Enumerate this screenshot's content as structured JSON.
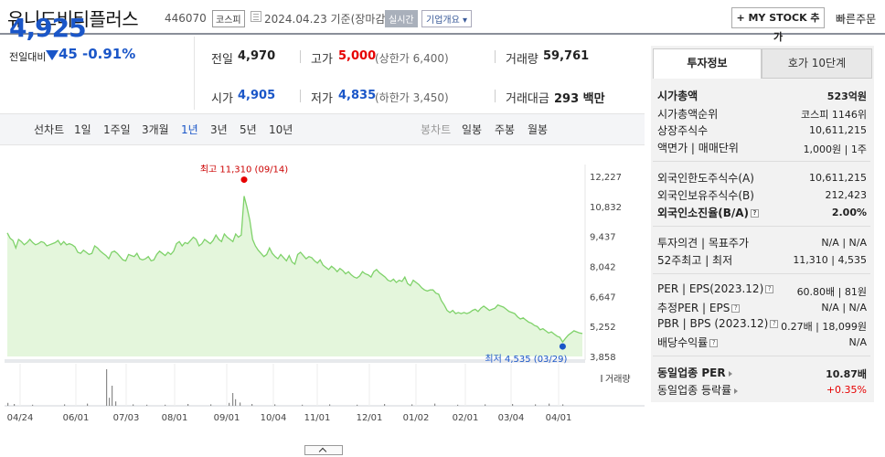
{
  "header": {
    "stock_name": "유니드비티플러스",
    "stock_code": "446070",
    "market": "코스피",
    "date_text": "2024.04.23 기준(장마감)",
    "realtime": "실시간",
    "corp_overview": "기업개요 ▾",
    "mystock_label": "+ MY STOCK 추가",
    "fast_order": "빠른주문"
  },
  "summary": {
    "price": "4,925",
    "change_label": "전일대비",
    "change_amount": "45",
    "change_rate": "-0.91%",
    "prev_close_label": "전일",
    "prev_close": "4,970",
    "high_label": "고가",
    "high": "5,000",
    "upper_limit": "(상한가 6,400)",
    "volume_label": "거래량",
    "volume": "59,761",
    "open_label": "시가",
    "open": "4,905",
    "low_label": "저가",
    "low": "4,835",
    "lower_limit": "(하한가 3,450)",
    "amount_label": "거래대금",
    "amount": "293 백만"
  },
  "tabs": {
    "line_chart": "선차트",
    "periods": [
      "1일",
      "1주일",
      "3개월",
      "1년",
      "3년",
      "5년",
      "10년"
    ],
    "selected": "1년",
    "candle_chart": "봉차트",
    "candle_periods": [
      "일봉",
      "주봉",
      "월봉"
    ]
  },
  "chart_data": {
    "type": "area",
    "y_ticks": [
      "12,227",
      "10,832",
      "9,437",
      "8,042",
      "6,647",
      "5,252",
      "3,858"
    ],
    "x_ticks": [
      "04/24",
      "06/01",
      "07/03",
      "08/01",
      "09/01",
      "10/04",
      "11/01",
      "12/01",
      "01/02",
      "02/01",
      "03/04",
      "04/01"
    ],
    "ylim": [
      3858,
      12227
    ],
    "high_annotation": "최고 11,310 (09/14)",
    "low_annotation": "최저 4,535 (03/29)",
    "volume_label": "거래량",
    "colors": {
      "line": "#7fd26a",
      "fill": "#e4f6dc",
      "high_dot": "#e60000",
      "low_dot": "#1a56c8"
    },
    "values": [
      9600,
      9350,
      9250,
      8900,
      9300,
      9200,
      9050,
      9150,
      9300,
      9150,
      9050,
      9100,
      9200,
      9150,
      9000,
      9050,
      9100,
      9150,
      9250,
      9050,
      9200,
      9050,
      9100,
      9050,
      8950,
      8700,
      8650,
      8800,
      8700,
      8600,
      8650,
      9000,
      8900,
      8750,
      8650,
      8550,
      8400,
      8700,
      8750,
      8650,
      8500,
      8350,
      8300,
      8600,
      8550,
      8500,
      8650,
      8400,
      8350,
      8400,
      8500,
      8300,
      8350,
      8600,
      8750,
      8650,
      8550,
      8700,
      8600,
      8750,
      9100,
      9200,
      9000,
      9150,
      9100,
      9250,
      9400,
      9300,
      9000,
      9100,
      9300,
      9200,
      9100,
      9250,
      9500,
      9300,
      9200,
      9550,
      9400,
      9300,
      9200,
      9550,
      9400,
      9500,
      11310,
      10800,
      10200,
      9300,
      9000,
      8800,
      8650,
      8500,
      8600,
      8900,
      8650,
      8500,
      8400,
      8600,
      8450,
      8300,
      8550,
      8250,
      8150,
      8600,
      8700,
      8550,
      8400,
      8500,
      8450,
      8300,
      8200,
      8350,
      8100,
      8000,
      7900,
      8050,
      7950,
      7800,
      7950,
      7850,
      7700,
      7800,
      7650,
      7550,
      7500,
      7600,
      7800,
      7700,
      7650,
      7550,
      7800,
      7900,
      7750,
      7650,
      7550,
      7400,
      7350,
      7450,
      7300,
      7400,
      7350,
      7550,
      7250,
      7150,
      7400,
      7300,
      7200,
      7050,
      6950,
      6900,
      6950,
      6950,
      6800,
      6750,
      6450,
      6250,
      6000,
      5900,
      6000,
      5850,
      5900,
      5850,
      5900,
      5850,
      5900,
      6000,
      6050,
      5950,
      6100,
      6200,
      6100,
      6000,
      6050,
      6100,
      6250,
      6200,
      6150,
      6050,
      5950,
      5900,
      5850,
      5700,
      5600,
      5650,
      5550,
      5450,
      5400,
      5300,
      5250,
      5100,
      5150,
      5050,
      4950,
      5000,
      4900,
      4800,
      4750,
      4535,
      4700,
      4850,
      4950,
      5050,
      5000,
      4950,
      4925
    ],
    "volume_bars": [
      {
        "x": 8,
        "v": 0.08
      },
      {
        "x": 15,
        "v": 0.05
      },
      {
        "x": 35,
        "v": 0.03
      },
      {
        "x": 70,
        "v": 0.04
      },
      {
        "x": 95,
        "v": 0.06
      },
      {
        "x": 116,
        "v": 1.0
      },
      {
        "x": 119,
        "v": 0.22
      },
      {
        "x": 122,
        "v": 0.55
      },
      {
        "x": 126,
        "v": 0.12
      },
      {
        "x": 145,
        "v": 0.04
      },
      {
        "x": 160,
        "v": 0.03
      },
      {
        "x": 180,
        "v": 0.03
      },
      {
        "x": 205,
        "v": 0.05
      },
      {
        "x": 230,
        "v": 0.04
      },
      {
        "x": 250,
        "v": 0.08
      },
      {
        "x": 254,
        "v": 0.35
      },
      {
        "x": 257,
        "v": 0.18
      },
      {
        "x": 262,
        "v": 0.09
      },
      {
        "x": 275,
        "v": 0.05
      },
      {
        "x": 300,
        "v": 0.04
      },
      {
        "x": 330,
        "v": 0.03
      },
      {
        "x": 360,
        "v": 0.04
      },
      {
        "x": 390,
        "v": 0.03
      },
      {
        "x": 420,
        "v": 0.05
      },
      {
        "x": 450,
        "v": 0.04
      },
      {
        "x": 475,
        "v": 0.06
      },
      {
        "x": 500,
        "v": 0.03
      },
      {
        "x": 530,
        "v": 0.04
      },
      {
        "x": 560,
        "v": 0.05
      },
      {
        "x": 585,
        "v": 0.04
      },
      {
        "x": 600,
        "v": 0.06
      },
      {
        "x": 615,
        "v": 0.04
      }
    ]
  },
  "right_panel": {
    "tab_invest": "투자정보",
    "tab_orderbook": "호가 10단계",
    "market_cap_label": "시가총액",
    "market_cap": "523억원",
    "market_cap_rank_label": "시가총액순위",
    "market_cap_rank": "코스피 1146위",
    "shares_label": "상장주식수",
    "shares": "10,611,215",
    "par_label": "액면가 | 매매단위",
    "par": "1,000원 | 1주",
    "foreign_limit_label": "외국인한도주식수(A)",
    "foreign_limit": "10,611,215",
    "foreign_hold_label": "외국인보유주식수(B)",
    "foreign_hold": "212,423",
    "foreign_rate_label": "외국인소진율(B/A)",
    "foreign_rate": "2.00%",
    "opinion_label": "투자의견 | 목표주가",
    "opinion": "N/A | N/A",
    "week52_label": "52주최고 | 최저",
    "week52": "11,310 | 4,535",
    "per_label": "PER | EPS(2023.12)",
    "per": "60.80배 | 81원",
    "est_per_label": "추정PER | EPS",
    "est_per": "N/A | N/A",
    "pbr_label": "PBR | BPS (2023.12)",
    "pbr": "0.27배 | 18,099원",
    "div_label": "배당수익률",
    "div": "N/A",
    "industry_per_label": "동일업종 PER",
    "industry_per": "10.87배",
    "industry_rate_label": "동일업종 등락률",
    "industry_rate": "+0.35%"
  }
}
